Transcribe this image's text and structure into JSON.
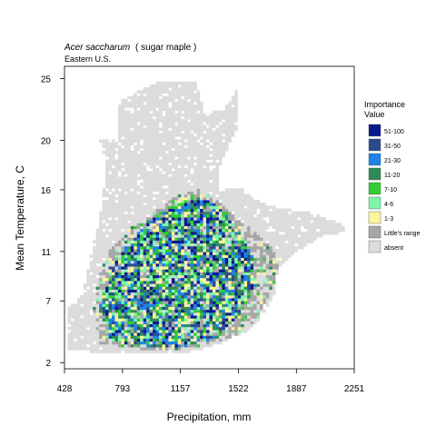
{
  "chart_data": {
    "type": "heatmap",
    "title": "Acer saccharum",
    "title_common": "( sugar maple )",
    "subtitle": "Eastern U.S.",
    "xlabel": "Precipitation, mm",
    "ylabel": "Mean Temperature, C",
    "xlim": [
      428,
      2251
    ],
    "ylim": [
      1.5,
      26
    ],
    "x_ticks": [
      428,
      793,
      1157,
      1522,
      1887,
      2251
    ],
    "y_ticks": [
      2,
      7,
      11,
      16,
      20,
      25
    ],
    "grid": false,
    "legend": {
      "position": "right",
      "title": [
        "Importance",
        "Value"
      ],
      "entries": [
        {
          "label": "51-100",
          "color": "#0a1a8c"
        },
        {
          "label": "31-50",
          "color": "#2a4a8f"
        },
        {
          "label": "21-30",
          "color": "#1e82e6"
        },
        {
          "label": "11-20",
          "color": "#2e8b57"
        },
        {
          "label": "7-10",
          "color": "#32cd32"
        },
        {
          "label": "4-6",
          "color": "#7ff5a8"
        },
        {
          "label": "1-3",
          "color": "#fff59a"
        },
        {
          "label": "Little's range",
          "color": "#a6a6a6"
        },
        {
          "label": "absent",
          "color": "#dcdcdc"
        }
      ]
    },
    "cells_note_free": true,
    "absent_region": [
      [
        760,
        20
      ],
      [
        760,
        23
      ],
      [
        1000,
        24.6
      ],
      [
        1250,
        24.5
      ],
      [
        1300,
        22
      ],
      [
        1430,
        22.5
      ],
      [
        1500,
        24
      ],
      [
        1510,
        21
      ],
      [
        1400,
        18
      ],
      [
        1380,
        16
      ],
      [
        1520,
        16
      ],
      [
        1580,
        15.5
      ],
      [
        1650,
        14.8
      ],
      [
        1800,
        14.3
      ],
      [
        1960,
        14.0
      ],
      [
        2100,
        13.4
      ],
      [
        2180,
        13.0
      ],
      [
        2180,
        12.4
      ],
      [
        2050,
        12.2
      ],
      [
        1870,
        10.8
      ],
      [
        1760,
        9.6
      ],
      [
        1740,
        7.4
      ],
      [
        1680,
        6.0
      ],
      [
        1590,
        4.6
      ],
      [
        1420,
        3.5
      ],
      [
        1200,
        2.7
      ],
      [
        900,
        2.6
      ],
      [
        620,
        2.7
      ],
      [
        440,
        3.0
      ],
      [
        440,
        6.4
      ],
      [
        530,
        7.4
      ],
      [
        560,
        9.0
      ],
      [
        600,
        11.5
      ],
      [
        660,
        15.0
      ],
      [
        680,
        18.0
      ],
      [
        640,
        20.0
      ]
    ],
    "range_region": [
      [
        690,
        10.8
      ],
      [
        820,
        12.6
      ],
      [
        1000,
        14.2
      ],
      [
        1120,
        15.4
      ],
      [
        1260,
        15.9
      ],
      [
        1420,
        14.6
      ],
      [
        1560,
        13.0
      ],
      [
        1700,
        11.5
      ],
      [
        1780,
        10.0
      ],
      [
        1720,
        7.6
      ],
      [
        1630,
        5.4
      ],
      [
        1460,
        3.8
      ],
      [
        1200,
        3.0
      ],
      [
        900,
        3.0
      ],
      [
        640,
        3.4
      ],
      [
        600,
        6.0
      ],
      [
        640,
        9.0
      ]
    ],
    "importance_region": [
      [
        700,
        9.5
      ],
      [
        840,
        11.8
      ],
      [
        1000,
        13.8
      ],
      [
        1150,
        15.0
      ],
      [
        1280,
        15.4
      ],
      [
        1420,
        14.2
      ],
      [
        1520,
        12.4
      ],
      [
        1600,
        10.5
      ],
      [
        1620,
        8.2
      ],
      [
        1520,
        5.8
      ],
      [
        1380,
        3.9
      ],
      [
        1150,
        3.1
      ],
      [
        900,
        3.2
      ],
      [
        700,
        3.6
      ],
      [
        640,
        6.2
      ]
    ]
  }
}
